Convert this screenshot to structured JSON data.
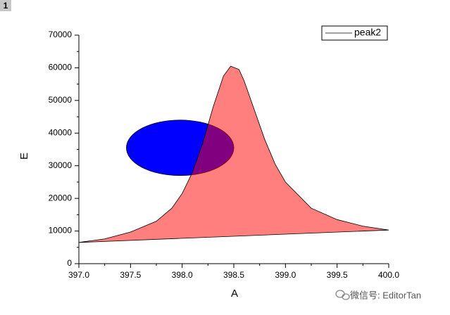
{
  "panel_label": "1",
  "watermark": "微信号: EditorTan",
  "chart_data": {
    "type": "area",
    "x_label": "A",
    "y_label": "E",
    "xlim": [
      397,
      400
    ],
    "ylim": [
      0,
      70000
    ],
    "xticks": [
      {
        "value": 397,
        "label": "397.0"
      },
      {
        "value": 397.5,
        "label": "397.5"
      },
      {
        "value": 398,
        "label": "398.0"
      },
      {
        "value": 398.5,
        "label": "398.5"
      },
      {
        "value": 399,
        "label": "399.0"
      },
      {
        "value": 399.5,
        "label": "399.5"
      },
      {
        "value": 400,
        "label": "400.0"
      }
    ],
    "xminorticks": [
      397.25,
      397.75,
      398.25,
      398.75,
      399.25,
      399.75
    ],
    "yticks": [
      0,
      10000,
      20000,
      30000,
      40000,
      50000,
      60000,
      70000
    ],
    "yminorticks": [
      5000,
      15000,
      25000,
      35000,
      45000,
      55000,
      65000
    ],
    "legend_position": "top-right",
    "series": [
      {
        "name": "peak2",
        "color": "#ff0000",
        "line_color": "#000000",
        "x": [
          397.0,
          397.25,
          397.5,
          397.75,
          397.9,
          398.0,
          398.1,
          398.2,
          398.3,
          398.4,
          398.47,
          398.55,
          398.6,
          398.7,
          398.8,
          398.9,
          399.0,
          399.25,
          399.5,
          399.75,
          400.0
        ],
        "values": [
          6500,
          7600,
          9700,
          13000,
          17000,
          21500,
          28000,
          37000,
          48000,
          57500,
          60500,
          59500,
          56000,
          47000,
          38000,
          30500,
          25000,
          17000,
          13500,
          11500,
          10300
        ]
      }
    ],
    "ellipse": {
      "cx": 397.98,
      "cy": 35500,
      "rx": 0.52,
      "ry": 8500,
      "color": "#0000ff"
    }
  }
}
